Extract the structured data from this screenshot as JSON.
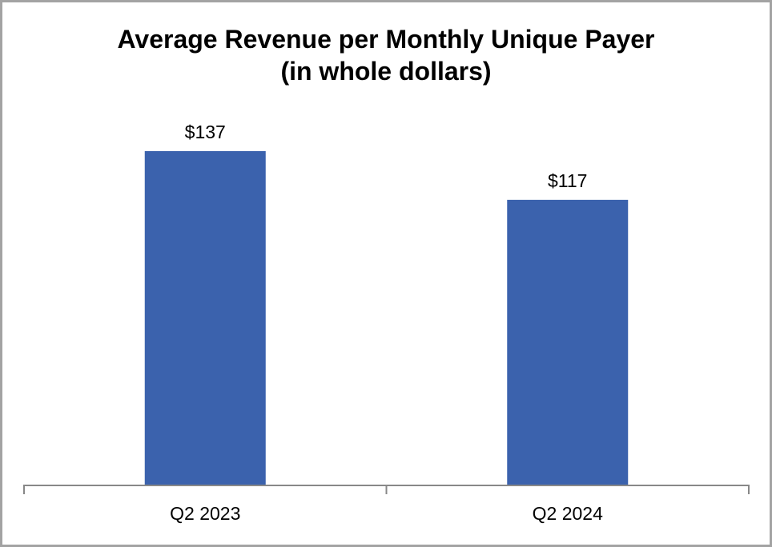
{
  "chart_data": {
    "type": "bar",
    "title": "Average Revenue per Monthly Unique Payer",
    "subtitle": "(in whole dollars)",
    "categories": [
      "Q2 2023",
      "Q2 2024"
    ],
    "values": [
      137,
      117
    ],
    "data_labels": [
      "$137",
      "$117"
    ],
    "xlabel": "",
    "ylabel": "",
    "ylim": [
      0,
      137
    ],
    "grid": false,
    "legend": "none",
    "bar_color": "#3b62ad",
    "axis_color": "#888888"
  }
}
